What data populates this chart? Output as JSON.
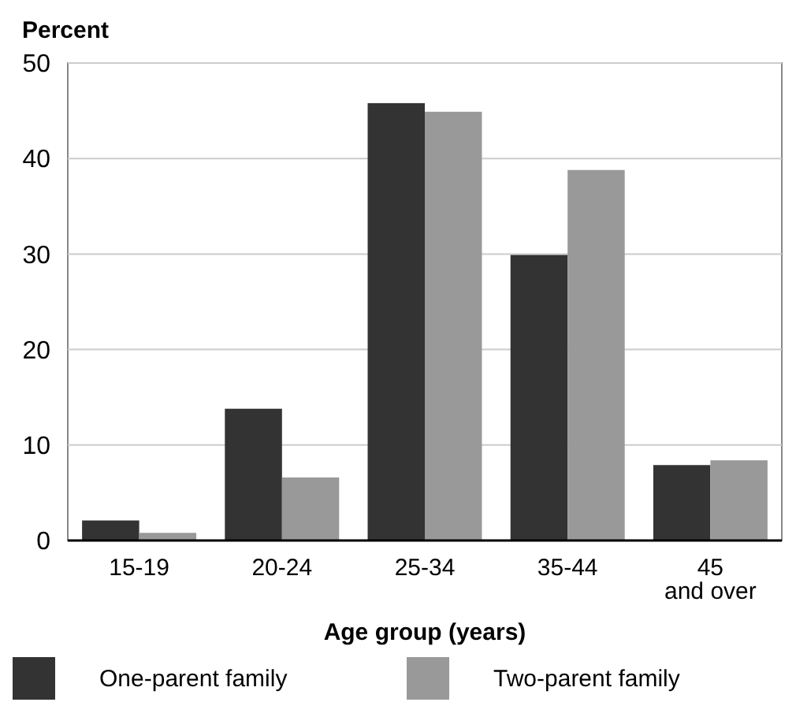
{
  "chart_data": {
    "type": "bar",
    "ylabel": "Percent",
    "xlabel": "Age group (years)",
    "categories": [
      "15-19",
      "20-24",
      "25-34",
      "35-44",
      "45\nand over"
    ],
    "series": [
      {
        "name": "One-parent family",
        "color": "#333333",
        "values": [
          2.1,
          13.8,
          45.8,
          29.9,
          7.9
        ]
      },
      {
        "name": "Two-parent family",
        "color": "#999999",
        "values": [
          0.8,
          6.6,
          44.9,
          38.8,
          8.4
        ]
      }
    ],
    "ylim": [
      0,
      50
    ],
    "yticks": [
      0,
      10,
      20,
      30,
      40,
      50
    ],
    "grid": "y",
    "legend": "bottom"
  }
}
